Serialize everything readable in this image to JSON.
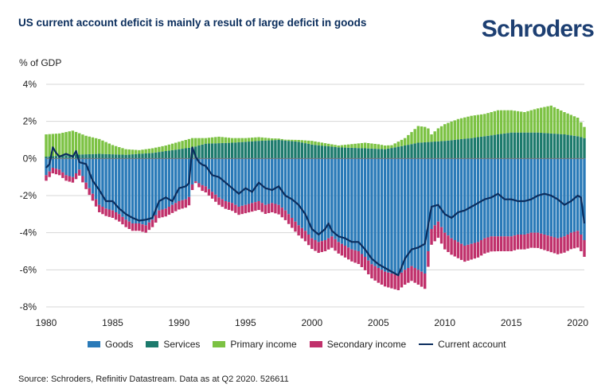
{
  "header": {
    "title": "US current account deficit is mainly a result of large deficit in goods",
    "brand": "Schroders"
  },
  "footer": {
    "source": "Source: Schroders, Refinitiv Datastream. Data as at Q2 2020. 526611"
  },
  "colors": {
    "goods": "#2a7ab8",
    "services": "#1c7a6c",
    "primary": "#7cc243",
    "secondary": "#c0306b",
    "current": "#0b2d5e"
  },
  "chart_data": {
    "type": "bar",
    "stacked": true,
    "title": "US current account deficit is mainly a result of large deficit in goods",
    "ylabel": "% of GDP",
    "ylim": [
      -8,
      4
    ],
    "yticks": [
      -8,
      -6,
      -4,
      -2,
      0,
      2,
      4
    ],
    "ytick_labels": [
      "-8%",
      "-6%",
      "-4%",
      "-2%",
      "0%",
      "2%",
      "4%"
    ],
    "xlim": [
      1980,
      2020.5
    ],
    "xticks": [
      1980,
      1985,
      1990,
      1995,
      2000,
      2005,
      2010,
      2015,
      2020
    ],
    "xtick_labels": [
      "1980",
      "1985",
      "1990",
      "1995",
      "2000",
      "2005",
      "2010",
      "2015",
      "2020"
    ],
    "grid": "horizontal",
    "legend": "bottom",
    "frequency": "quarterly",
    "series": [
      {
        "name": "Goods",
        "kind": "bar",
        "color": "#2a7ab8",
        "anchors": [
          [
            1980.0,
            -0.9
          ],
          [
            1980.5,
            -0.5
          ],
          [
            1981.0,
            -0.6
          ],
          [
            1981.5,
            -0.9
          ],
          [
            1982.0,
            -1.0
          ],
          [
            1982.5,
            -0.6
          ],
          [
            1983.0,
            -1.3
          ],
          [
            1983.5,
            -1.9
          ],
          [
            1984.0,
            -2.5
          ],
          [
            1984.5,
            -2.7
          ],
          [
            1985.0,
            -2.8
          ],
          [
            1985.5,
            -3.0
          ],
          [
            1986.0,
            -3.3
          ],
          [
            1986.5,
            -3.5
          ],
          [
            1987.0,
            -3.5
          ],
          [
            1987.5,
            -3.6
          ],
          [
            1988.0,
            -3.3
          ],
          [
            1988.5,
            -2.8
          ],
          [
            1989.0,
            -2.7
          ],
          [
            1989.5,
            -2.5
          ],
          [
            1990.0,
            -2.3
          ],
          [
            1990.5,
            -2.2
          ],
          [
            1990.9,
            -2.0
          ],
          [
            1991.0,
            -1.4
          ],
          [
            1991.3,
            -1.2
          ],
          [
            1991.6,
            -1.4
          ],
          [
            1992.0,
            -1.5
          ],
          [
            1992.5,
            -1.8
          ],
          [
            1993.0,
            -2.1
          ],
          [
            1993.5,
            -2.3
          ],
          [
            1994.0,
            -2.4
          ],
          [
            1994.5,
            -2.6
          ],
          [
            1995.0,
            -2.5
          ],
          [
            1995.5,
            -2.4
          ],
          [
            1996.0,
            -2.3
          ],
          [
            1996.5,
            -2.5
          ],
          [
            1997.0,
            -2.4
          ],
          [
            1997.5,
            -2.5
          ],
          [
            1998.0,
            -2.8
          ],
          [
            1998.5,
            -3.2
          ],
          [
            1999.0,
            -3.6
          ],
          [
            1999.5,
            -3.9
          ],
          [
            2000.0,
            -4.3
          ],
          [
            2000.5,
            -4.5
          ],
          [
            2001.0,
            -4.4
          ],
          [
            2001.5,
            -4.2
          ],
          [
            2002.0,
            -4.5
          ],
          [
            2002.5,
            -4.7
          ],
          [
            2003.0,
            -4.9
          ],
          [
            2003.5,
            -5.0
          ],
          [
            2004.0,
            -5.3
          ],
          [
            2004.5,
            -5.7
          ],
          [
            2005.0,
            -5.9
          ],
          [
            2005.5,
            -6.1
          ],
          [
            2006.0,
            -6.2
          ],
          [
            2006.5,
            -6.3
          ],
          [
            2007.0,
            -6.0
          ],
          [
            2007.5,
            -5.8
          ],
          [
            2008.0,
            -6.0
          ],
          [
            2008.5,
            -6.2
          ],
          [
            2009.0,
            -3.8
          ],
          [
            2009.5,
            -3.4
          ],
          [
            2010.0,
            -4.0
          ],
          [
            2010.5,
            -4.3
          ],
          [
            2011.0,
            -4.5
          ],
          [
            2011.5,
            -4.7
          ],
          [
            2012.0,
            -4.6
          ],
          [
            2012.5,
            -4.5
          ],
          [
            2013.0,
            -4.3
          ],
          [
            2013.5,
            -4.2
          ],
          [
            2014.0,
            -4.2
          ],
          [
            2014.5,
            -4.2
          ],
          [
            2015.0,
            -4.2
          ],
          [
            2015.5,
            -4.1
          ],
          [
            2016.0,
            -4.1
          ],
          [
            2016.5,
            -4.0
          ],
          [
            2017.0,
            -4.0
          ],
          [
            2017.5,
            -4.1
          ],
          [
            2018.0,
            -4.2
          ],
          [
            2018.5,
            -4.3
          ],
          [
            2019.0,
            -4.2
          ],
          [
            2019.5,
            -4.0
          ],
          [
            2020.0,
            -3.9
          ],
          [
            2020.25,
            -4.1
          ],
          [
            2020.5,
            -4.4
          ]
        ]
      },
      {
        "name": "Services",
        "kind": "bar",
        "color": "#1c7a6c",
        "anchors": [
          [
            1980.0,
            0.1
          ],
          [
            1982.0,
            0.2
          ],
          [
            1984.0,
            0.25
          ],
          [
            1986.0,
            0.2
          ],
          [
            1988.0,
            0.3
          ],
          [
            1990.0,
            0.5
          ],
          [
            1991.0,
            0.6
          ],
          [
            1992.0,
            0.8
          ],
          [
            1994.0,
            0.85
          ],
          [
            1996.0,
            0.95
          ],
          [
            1997.5,
            1.0
          ],
          [
            1999.0,
            0.9
          ],
          [
            2000.0,
            0.75
          ],
          [
            2002.0,
            0.6
          ],
          [
            2004.0,
            0.55
          ],
          [
            2005.5,
            0.5
          ],
          [
            2007.0,
            0.7
          ],
          [
            2008.0,
            0.85
          ],
          [
            2009.0,
            0.9
          ],
          [
            2010.0,
            0.95
          ],
          [
            2012.0,
            1.1
          ],
          [
            2014.0,
            1.3
          ],
          [
            2015.0,
            1.4
          ],
          [
            2016.0,
            1.4
          ],
          [
            2017.0,
            1.4
          ],
          [
            2018.0,
            1.35
          ],
          [
            2019.0,
            1.3
          ],
          [
            2020.0,
            1.2
          ],
          [
            2020.5,
            1.1
          ]
        ]
      },
      {
        "name": "Primary income",
        "kind": "bar",
        "color": "#7cc243",
        "anchors": [
          [
            1980.0,
            1.2
          ],
          [
            1981.0,
            1.2
          ],
          [
            1982.0,
            1.3
          ],
          [
            1983.0,
            1.0
          ],
          [
            1984.0,
            0.8
          ],
          [
            1985.0,
            0.5
          ],
          [
            1986.0,
            0.3
          ],
          [
            1987.0,
            0.2
          ],
          [
            1988.0,
            0.25
          ],
          [
            1989.0,
            0.3
          ],
          [
            1990.0,
            0.4
          ],
          [
            1991.0,
            0.5
          ],
          [
            1992.0,
            0.3
          ],
          [
            1993.0,
            0.35
          ],
          [
            1994.0,
            0.25
          ],
          [
            1995.0,
            0.2
          ],
          [
            1996.0,
            0.2
          ],
          [
            1997.0,
            0.1
          ],
          [
            1998.0,
            0.05
          ],
          [
            1999.0,
            0.1
          ],
          [
            2000.0,
            0.2
          ],
          [
            2001.0,
            0.15
          ],
          [
            2002.0,
            0.1
          ],
          [
            2003.0,
            0.2
          ],
          [
            2004.0,
            0.3
          ],
          [
            2005.0,
            0.25
          ],
          [
            2006.0,
            0.15
          ],
          [
            2007.0,
            0.4
          ],
          [
            2008.0,
            0.9
          ],
          [
            2008.7,
            0.8
          ],
          [
            2009.0,
            0.4
          ],
          [
            2009.5,
            0.7
          ],
          [
            2010.0,
            0.9
          ],
          [
            2011.0,
            1.1
          ],
          [
            2012.0,
            1.2
          ],
          [
            2013.0,
            1.2
          ],
          [
            2014.0,
            1.3
          ],
          [
            2015.0,
            1.2
          ],
          [
            2016.0,
            1.1
          ],
          [
            2017.0,
            1.3
          ],
          [
            2018.0,
            1.5
          ],
          [
            2019.0,
            1.2
          ],
          [
            2020.0,
            1.0
          ],
          [
            2020.5,
            0.6
          ]
        ]
      },
      {
        "name": "Secondary income",
        "kind": "bar",
        "color": "#c0306b",
        "anchors": [
          [
            1980.0,
            -0.3
          ],
          [
            1982.0,
            -0.3
          ],
          [
            1984.0,
            -0.4
          ],
          [
            1986.0,
            -0.4
          ],
          [
            1988.0,
            -0.4
          ],
          [
            1990.0,
            -0.45
          ],
          [
            1990.8,
            -0.45
          ],
          [
            1991.0,
            -0.3
          ],
          [
            1991.3,
            -0.05
          ],
          [
            1991.6,
            -0.3
          ],
          [
            1993.0,
            -0.4
          ],
          [
            1995.0,
            -0.45
          ],
          [
            1997.0,
            -0.5
          ],
          [
            1999.0,
            -0.55
          ],
          [
            2001.0,
            -0.6
          ],
          [
            2003.0,
            -0.65
          ],
          [
            2005.0,
            -0.8
          ],
          [
            2006.0,
            -0.8
          ],
          [
            2008.0,
            -0.8
          ],
          [
            2010.0,
            -0.9
          ],
          [
            2012.0,
            -0.85
          ],
          [
            2014.0,
            -0.8
          ],
          [
            2016.0,
            -0.8
          ],
          [
            2018.0,
            -0.85
          ],
          [
            2020.0,
            -0.9
          ],
          [
            2020.5,
            -0.9
          ]
        ]
      },
      {
        "name": "Current account",
        "kind": "line",
        "color": "#0b2d5e",
        "anchors": [
          [
            1980.0,
            -0.5
          ],
          [
            1980.25,
            -0.3
          ],
          [
            1980.5,
            0.6
          ],
          [
            1980.75,
            0.3
          ],
          [
            1981.0,
            0.1
          ],
          [
            1981.5,
            0.25
          ],
          [
            1982.0,
            0.1
          ],
          [
            1982.25,
            0.4
          ],
          [
            1982.5,
            -0.2
          ],
          [
            1983.0,
            -0.3
          ],
          [
            1983.5,
            -1.2
          ],
          [
            1984.0,
            -1.7
          ],
          [
            1984.5,
            -2.3
          ],
          [
            1985.0,
            -2.3
          ],
          [
            1985.5,
            -2.7
          ],
          [
            1986.0,
            -3.0
          ],
          [
            1986.5,
            -3.2
          ],
          [
            1987.0,
            -3.35
          ],
          [
            1987.5,
            -3.3
          ],
          [
            1988.0,
            -3.2
          ],
          [
            1988.5,
            -2.3
          ],
          [
            1989.0,
            -2.1
          ],
          [
            1989.5,
            -2.3
          ],
          [
            1990.0,
            -1.6
          ],
          [
            1990.5,
            -1.5
          ],
          [
            1990.8,
            -1.3
          ],
          [
            1991.0,
            0.6
          ],
          [
            1991.3,
            0.0
          ],
          [
            1991.6,
            -0.3
          ],
          [
            1992.0,
            -0.4
          ],
          [
            1992.5,
            -0.9
          ],
          [
            1993.0,
            -1.0
          ],
          [
            1993.5,
            -1.3
          ],
          [
            1994.0,
            -1.6
          ],
          [
            1994.5,
            -1.9
          ],
          [
            1995.0,
            -1.6
          ],
          [
            1995.5,
            -1.8
          ],
          [
            1996.0,
            -1.3
          ],
          [
            1996.5,
            -1.6
          ],
          [
            1997.0,
            -1.7
          ],
          [
            1997.5,
            -1.5
          ],
          [
            1998.0,
            -2.0
          ],
          [
            1998.5,
            -2.2
          ],
          [
            1999.0,
            -2.5
          ],
          [
            1999.5,
            -3.0
          ],
          [
            2000.0,
            -3.8
          ],
          [
            2000.5,
            -4.1
          ],
          [
            2001.0,
            -3.8
          ],
          [
            2001.25,
            -3.5
          ],
          [
            2001.5,
            -3.9
          ],
          [
            2002.0,
            -4.2
          ],
          [
            2002.5,
            -4.3
          ],
          [
            2003.0,
            -4.5
          ],
          [
            2003.5,
            -4.5
          ],
          [
            2004.0,
            -4.9
          ],
          [
            2004.5,
            -5.4
          ],
          [
            2005.0,
            -5.7
          ],
          [
            2005.5,
            -5.9
          ],
          [
            2006.0,
            -6.1
          ],
          [
            2006.5,
            -6.3
          ],
          [
            2007.0,
            -5.4
          ],
          [
            2007.5,
            -4.9
          ],
          [
            2008.0,
            -4.8
          ],
          [
            2008.5,
            -4.6
          ],
          [
            2009.0,
            -2.6
          ],
          [
            2009.5,
            -2.5
          ],
          [
            2010.0,
            -3.0
          ],
          [
            2010.5,
            -3.2
          ],
          [
            2011.0,
            -2.9
          ],
          [
            2011.5,
            -2.8
          ],
          [
            2012.0,
            -2.6
          ],
          [
            2012.5,
            -2.4
          ],
          [
            2013.0,
            -2.2
          ],
          [
            2013.5,
            -2.1
          ],
          [
            2014.0,
            -1.9
          ],
          [
            2014.5,
            -2.2
          ],
          [
            2015.0,
            -2.2
          ],
          [
            2015.5,
            -2.3
          ],
          [
            2016.0,
            -2.3
          ],
          [
            2016.5,
            -2.2
          ],
          [
            2017.0,
            -2.0
          ],
          [
            2017.5,
            -1.9
          ],
          [
            2018.0,
            -2.0
          ],
          [
            2018.5,
            -2.2
          ],
          [
            2019.0,
            -2.5
          ],
          [
            2019.5,
            -2.3
          ],
          [
            2020.0,
            -2.0
          ],
          [
            2020.25,
            -2.1
          ],
          [
            2020.5,
            -3.5
          ]
        ]
      }
    ]
  }
}
